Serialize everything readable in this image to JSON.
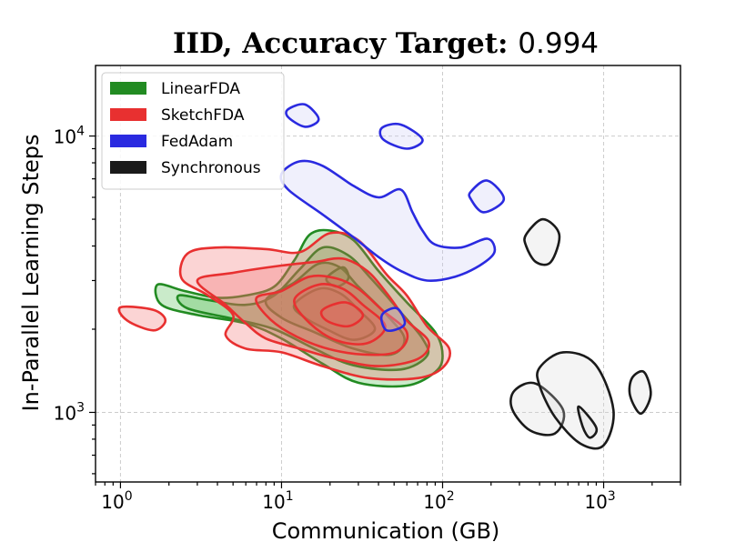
{
  "chart_data": {
    "type": "kde-contour",
    "title_main": "IID, Accuracy Target: ",
    "title_value": "0.994",
    "xlabel": "Communication (GB)",
    "ylabel": "In-Parallel Learning Steps",
    "xscale": "log",
    "yscale": "log",
    "xlim": [
      0.7,
      3000
    ],
    "ylim": [
      560,
      18000
    ],
    "grid": true,
    "x_ticks": [
      {
        "value": 1,
        "base": "10",
        "exp": "0"
      },
      {
        "value": 10,
        "base": "10",
        "exp": "1"
      },
      {
        "value": 100,
        "base": "10",
        "exp": "2"
      },
      {
        "value": 1000,
        "base": "10",
        "exp": "3"
      }
    ],
    "y_ticks": [
      {
        "value": 1000,
        "base": "10",
        "exp": "3"
      },
      {
        "value": 10000,
        "base": "10",
        "exp": "4"
      }
    ],
    "legend_position": "top-left",
    "series": [
      {
        "name": "LinearFDA",
        "color": "#228b22",
        "fill": "#3cb43c",
        "contours": [
          {
            "level": 1,
            "points": [
              [
                1.7,
                2900
              ],
              [
                2.5,
                2750
              ],
              [
                4,
                2600
              ],
              [
                6,
                2650
              ],
              [
                9,
                2850
              ],
              [
                12,
                3550
              ],
              [
                15,
                4400
              ],
              [
                20,
                4550
              ],
              [
                28,
                4200
              ],
              [
                40,
                3250
              ],
              [
                60,
                2500
              ],
              [
                90,
                1950
              ],
              [
                100,
                1600
              ],
              [
                90,
                1400
              ],
              [
                60,
                1250
              ],
              [
                30,
                1280
              ],
              [
                18,
                1500
              ],
              [
                10,
                1850
              ],
              [
                6,
                2100
              ],
              [
                3,
                2250
              ],
              [
                1.8,
                2450
              ]
            ]
          },
          {
            "level": 2,
            "points": [
              [
                2.3,
                2650
              ],
              [
                3.5,
                2550
              ],
              [
                6,
                2450
              ],
              [
                9,
                2650
              ],
              [
                13,
                3300
              ],
              [
                18,
                3950
              ],
              [
                26,
                3700
              ],
              [
                36,
                3050
              ],
              [
                55,
                2300
              ],
              [
                75,
                1850
              ],
              [
                80,
                1600
              ],
              [
                55,
                1430
              ],
              [
                28,
                1480
              ],
              [
                16,
                1700
              ],
              [
                9,
                2000
              ],
              [
                5,
                2180
              ],
              [
                2.6,
                2380
              ]
            ]
          },
          {
            "level": 3,
            "points": [
              [
                8,
                2550
              ],
              [
                12,
                2950
              ],
              [
                17,
                3450
              ],
              [
                23,
                3350
              ],
              [
                30,
                2850
              ],
              [
                45,
                2250
              ],
              [
                58,
                1850
              ],
              [
                48,
                1620
              ],
              [
                28,
                1700
              ],
              [
                16,
                1950
              ],
              [
                10,
                2200
              ]
            ]
          },
          {
            "level": 4,
            "points": [
              [
                12,
                2450
              ],
              [
                17,
                2800
              ],
              [
                23,
                2700
              ],
              [
                30,
                2350
              ],
              [
                38,
                2000
              ],
              [
                28,
                1830
              ],
              [
                19,
                2000
              ],
              [
                14,
                2200
              ]
            ]
          },
          {
            "level": 5,
            "points": [
              [
                19,
                3050
              ],
              [
                24,
                3350
              ],
              [
                26,
                3050
              ],
              [
                22,
                2850
              ]
            ]
          }
        ]
      },
      {
        "name": "SketchFDA",
        "color": "#e83030",
        "fill": "#f26060",
        "contours": [
          {
            "level": 1,
            "points": [
              [
                2.6,
                3750
              ],
              [
                4,
                3950
              ],
              [
                8,
                3900
              ],
              [
                13,
                3800
              ],
              [
                20,
                4450
              ],
              [
                30,
                4200
              ],
              [
                45,
                3150
              ],
              [
                60,
                2650
              ],
              [
                80,
                2050
              ],
              [
                110,
                1700
              ],
              [
                100,
                1450
              ],
              [
                70,
                1330
              ],
              [
                35,
                1330
              ],
              [
                18,
                1470
              ],
              [
                10,
                1650
              ],
              [
                6,
                1700
              ],
              [
                4.5,
                1900
              ],
              [
                5,
                2250
              ],
              [
                3.5,
                2650
              ],
              [
                2.4,
                3050
              ]
            ]
          },
          {
            "level": 2,
            "points": [
              [
                3,
                3000
              ],
              [
                5,
                3200
              ],
              [
                10,
                3400
              ],
              [
                16,
                3500
              ],
              [
                24,
                3600
              ],
              [
                34,
                3250
              ],
              [
                45,
                2700
              ],
              [
                60,
                2150
              ],
              [
                82,
                1800
              ],
              [
                70,
                1560
              ],
              [
                40,
                1470
              ],
              [
                22,
                1560
              ],
              [
                13,
                1700
              ],
              [
                8,
                1850
              ],
              [
                6,
                2100
              ],
              [
                4.5,
                2450
              ]
            ]
          },
          {
            "level": 3,
            "points": [
              [
                7,
                2600
              ],
              [
                10,
                2750
              ],
              [
                15,
                3100
              ],
              [
                22,
                3050
              ],
              [
                30,
                2800
              ],
              [
                42,
                2350
              ],
              [
                60,
                1950
              ],
              [
                52,
                1660
              ],
              [
                32,
                1620
              ],
              [
                18,
                1720
              ],
              [
                11,
                1950
              ],
              [
                8,
                2250
              ]
            ]
          },
          {
            "level": 4,
            "points": [
              [
                12,
                2550
              ],
              [
                17,
                2900
              ],
              [
                24,
                2800
              ],
              [
                32,
                2450
              ],
              [
                44,
                2050
              ],
              [
                34,
                1780
              ],
              [
                22,
                1820
              ],
              [
                15,
                2100
              ]
            ]
          },
          {
            "level": 5,
            "points": [
              [
                18,
                2350
              ],
              [
                25,
                2500
              ],
              [
                32,
                2250
              ],
              [
                26,
                2050
              ],
              [
                19,
                2150
              ]
            ]
          },
          {
            "level": 6,
            "points": [
              [
                1.0,
                2400
              ],
              [
                1.6,
                2350
              ],
              [
                1.9,
                2150
              ],
              [
                1.6,
                1980
              ],
              [
                1.1,
                2150
              ]
            ]
          }
        ]
      },
      {
        "name": "FedAdam",
        "color": "#2a2ae0",
        "fill": "#c8c8f4",
        "contours": [
          {
            "level": 1,
            "points": [
              [
                10,
                7300
              ],
              [
                13,
                8100
              ],
              [
                18,
                7800
              ],
              [
                28,
                6600
              ],
              [
                40,
                6000
              ],
              [
                55,
                6400
              ],
              [
                65,
                5300
              ],
              [
                75,
                4550
              ],
              [
                90,
                4050
              ],
              [
                130,
                3950
              ],
              [
                190,
                4250
              ],
              [
                210,
                3800
              ],
              [
                170,
                3400
              ],
              [
                120,
                3100
              ],
              [
                80,
                3000
              ],
              [
                55,
                3250
              ],
              [
                40,
                3650
              ],
              [
                28,
                4300
              ],
              [
                18,
                5200
              ],
              [
                11,
                6400
              ]
            ]
          },
          {
            "level": 2,
            "points": [
              [
                11,
                12500
              ],
              [
                14,
                13000
              ],
              [
                17,
                11500
              ],
              [
                14,
                10800
              ],
              [
                11,
                11700
              ]
            ]
          },
          {
            "level": 3,
            "points": [
              [
                42,
                10700
              ],
              [
                55,
                11000
              ],
              [
                75,
                9700
              ],
              [
                60,
                9000
              ],
              [
                43,
                9700
              ]
            ]
          },
          {
            "level": 4,
            "points": [
              [
                150,
                6300
              ],
              [
                190,
                6900
              ],
              [
                240,
                5900
              ],
              [
                180,
                5300
              ],
              [
                150,
                5900
              ]
            ]
          },
          {
            "level": 5,
            "points": [
              [
                42,
                2250
              ],
              [
                52,
                2380
              ],
              [
                58,
                2080
              ],
              [
                45,
                1980
              ]
            ]
          }
        ]
      },
      {
        "name": "Synchronous",
        "color": "#1a1a1a",
        "fill": "#d6d6d6",
        "contours": [
          {
            "level": 1,
            "points": [
              [
                330,
                4400
              ],
              [
                420,
                5000
              ],
              [
                530,
                4400
              ],
              [
                470,
                3500
              ],
              [
                380,
                3500
              ],
              [
                330,
                4000
              ]
            ]
          },
          {
            "level": 2,
            "points": [
              [
                280,
                1200
              ],
              [
                380,
                1270
              ],
              [
                560,
                1020
              ],
              [
                500,
                840
              ],
              [
                350,
                860
              ],
              [
                270,
                1030
              ]
            ]
          },
          {
            "level": 3,
            "points": [
              [
                400,
                1450
              ],
              [
                560,
                1650
              ],
              [
                880,
                1500
              ],
              [
                1150,
                1020
              ],
              [
                1000,
                760
              ],
              [
                720,
                770
              ],
              [
                500,
                960
              ],
              [
                400,
                1250
              ]
            ]
          },
          {
            "level": 4,
            "points": [
              [
                700,
                1050
              ],
              [
                900,
                880
              ],
              [
                820,
                810
              ],
              [
                740,
                890
              ]
            ]
          },
          {
            "level": 5,
            "points": [
              [
                1500,
                1330
              ],
              [
                1780,
                1400
              ],
              [
                1960,
                1160
              ],
              [
                1700,
                990
              ],
              [
                1460,
                1150
              ]
            ]
          }
        ]
      }
    ]
  }
}
